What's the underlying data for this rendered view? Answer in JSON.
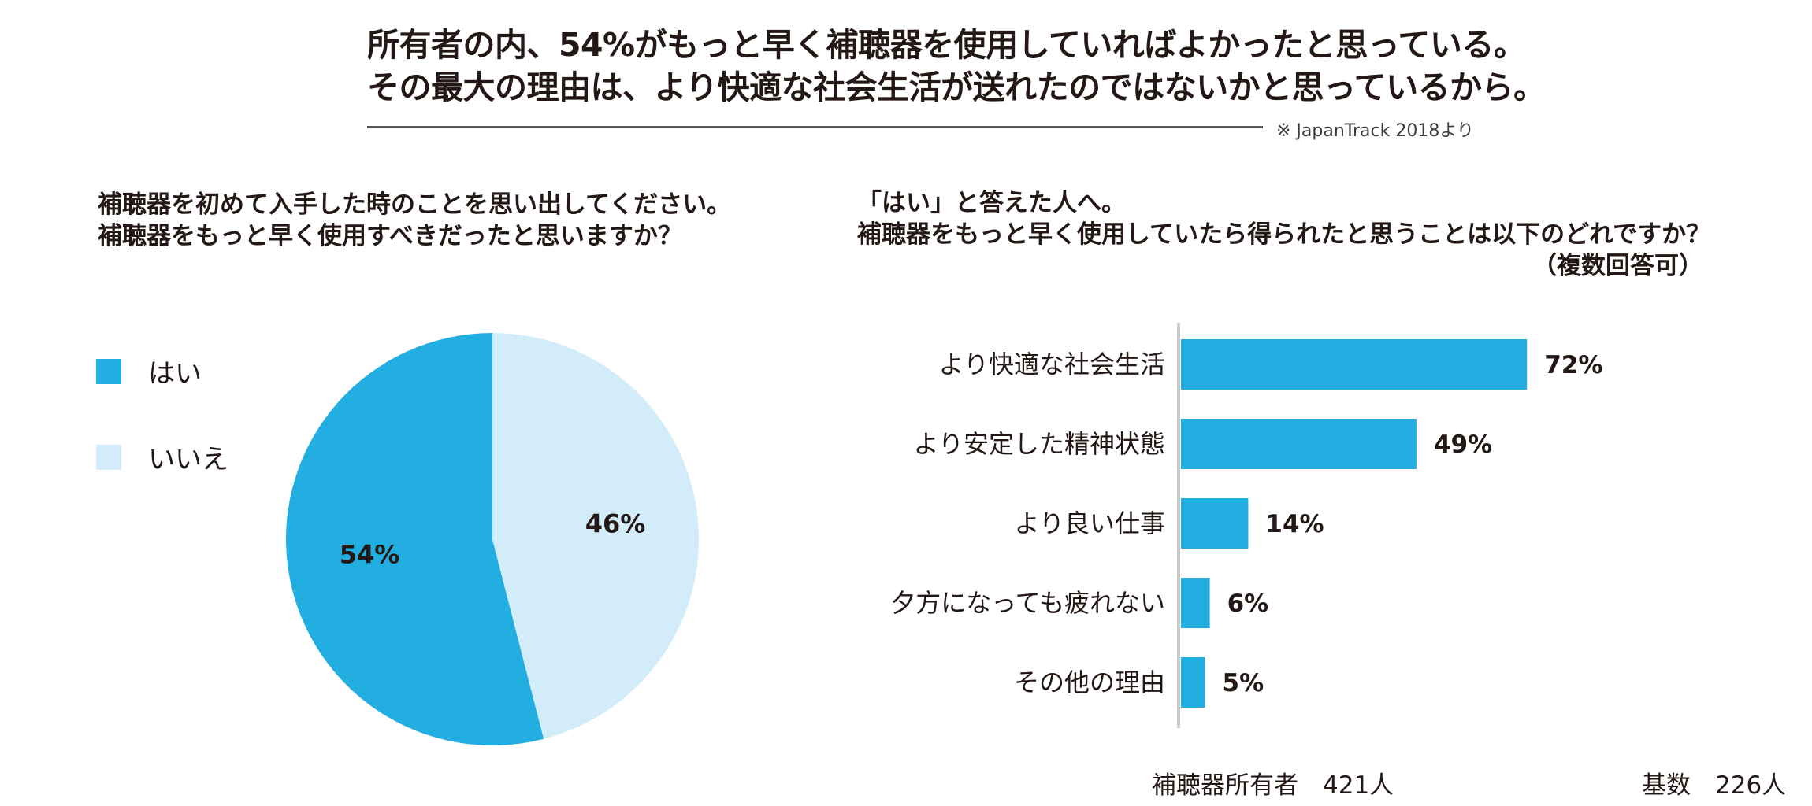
{
  "headline": {
    "line1": "所有者の内、54%がもっと早く補聴器を使用していればよかったと思っている。",
    "line2": "その最大の理由は、より快適な社会生活が送れたのではないかと思っているから。",
    "source": "※ JapanTrack 2018より"
  },
  "left_question": {
    "line1": "補聴器を初めて入手した時のことを思い出してください。",
    "line2": "補聴器をもっと早く使用すべきだったと思いますか？"
  },
  "right_question": {
    "line1": "「はい」と答えた人へ。",
    "line2": "補聴器をもっと早く使用していたら得られたと思うことは以下のどれですか？",
    "line3": "（複数回答可）"
  },
  "colors": {
    "primary": "#22aee0",
    "secondary": "#d3ecf9",
    "axis": "#c9caca",
    "text": "#231815"
  },
  "chart_data": [
    {
      "type": "pie",
      "slices": [
        {
          "label": "はい",
          "value": 54,
          "display": "54%",
          "color": "#22aee0"
        },
        {
          "label": "いいえ",
          "value": 46,
          "display": "46%",
          "color": "#d3ecf9"
        }
      ],
      "legend_placement": "left"
    },
    {
      "type": "bar",
      "orientation": "horizontal",
      "categories": [
        "より快適な社会生活",
        "より安定した精神状態",
        "より良い仕事",
        "夕方になっても疲れない",
        "その他の理由"
      ],
      "values": [
        72,
        49,
        14,
        6,
        5
      ],
      "value_labels": [
        "72%",
        "49%",
        "14%",
        "6%",
        "5%"
      ],
      "xlim": [
        0,
        100
      ],
      "grid": false
    }
  ],
  "footer": {
    "left_base": "補聴器所有者　421人",
    "right_base": "基数　226人"
  }
}
